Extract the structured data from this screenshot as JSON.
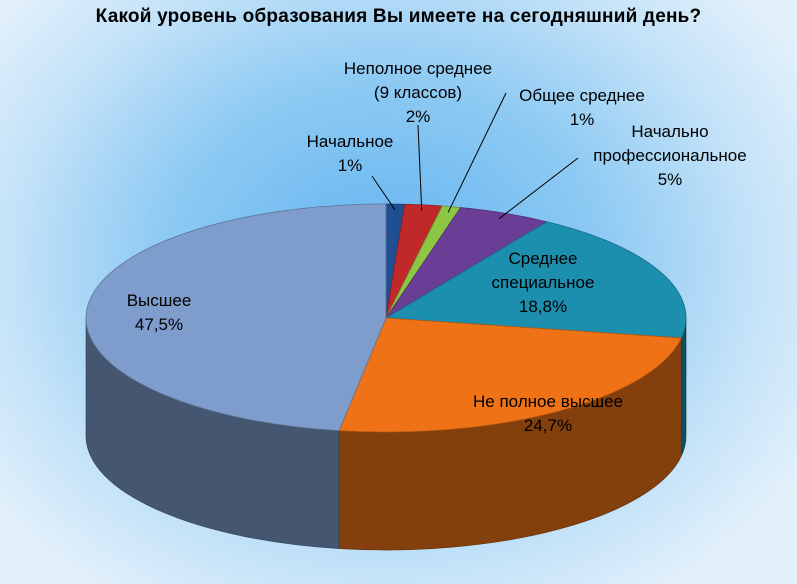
{
  "chart_data": {
    "type": "pie",
    "title": "Какой уровень образования Вы имеете на сегодняшний день?",
    "slices": [
      {
        "label": "Начальное",
        "value": 1,
        "value_label": "1%",
        "color": "#1f4e92"
      },
      {
        "label": "Неполное среднее (9 классов)",
        "label_lines": [
          "Неполное среднее",
          "(9 классов)"
        ],
        "value": 2,
        "value_label": "2%",
        "color": "#c0282a"
      },
      {
        "label": "Общее среднее",
        "value": 1,
        "value_label": "1%",
        "color": "#8dc642"
      },
      {
        "label": "Начально профессиональное",
        "label_lines": [
          "Начально",
          "профессиональное"
        ],
        "value": 5,
        "value_label": "5%",
        "color": "#6a3e96"
      },
      {
        "label": "Среднее специальное",
        "label_lines": [
          "Среднее",
          "специальное"
        ],
        "value": 18.8,
        "value_label": "18,8%",
        "color": "#1d8fae"
      },
      {
        "label": "Не полное высшее",
        "value": 24.7,
        "value_label": "24,7%",
        "color": "#ef7316"
      },
      {
        "label": "Высшее",
        "value": 47.5,
        "value_label": "47,5%",
        "color": "#7e9ccc"
      }
    ],
    "legend": "none"
  }
}
